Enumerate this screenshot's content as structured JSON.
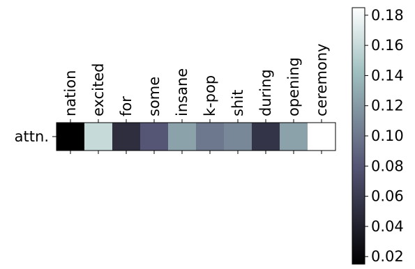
{
  "chart_data": {
    "type": "heatmap",
    "row_labels": [
      "attn."
    ],
    "column_labels": [
      "nation",
      "excited",
      "for",
      "some",
      "insane",
      "k-pop",
      "shit",
      "during",
      "opening",
      "ceremony"
    ],
    "values": [
      [
        0.015,
        0.16,
        0.05,
        0.08,
        0.125,
        0.1,
        0.11,
        0.055,
        0.125,
        0.185
      ]
    ],
    "colorbar": {
      "ticks": [
        "0.02",
        "0.04",
        "0.06",
        "0.08",
        "0.10",
        "0.12",
        "0.14",
        "0.16",
        "0.18"
      ],
      "range": [
        0.015,
        0.185
      ],
      "colormap": "bone"
    }
  }
}
